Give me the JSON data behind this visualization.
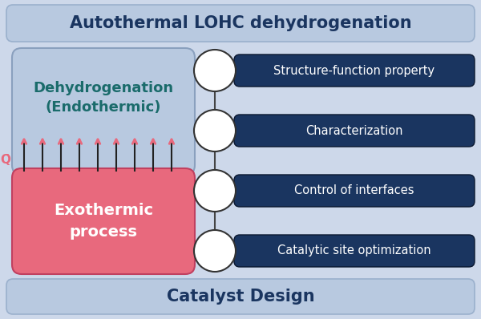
{
  "title": "Autothermal LOHC dehydrogenation",
  "bottom_label": "Catalyst Design",
  "left_box_top_text": "Dehydrogenation\n(Endothermic)",
  "left_box_bottom_text": "Exothermic\nprocess",
  "right_labels": [
    "Structure-function property",
    "Characterization",
    "Control of interfaces",
    "Catalytic site optimization"
  ],
  "bg_color": "#cdd8ea",
  "title_box_color": "#b8c9e0",
  "left_top_box_color": "#b8c9e0",
  "left_bottom_box_color": "#e8697d",
  "right_box_color": "#1a3560",
  "right_text_color": "#ffffff",
  "left_top_text_color": "#1a6b6b",
  "left_bottom_text_color": "#ffffff",
  "title_text_color": "#1a3560",
  "arrow_body_color": "#e8697d",
  "arrow_line_color": "#222222",
  "circle_color": "#ffffff",
  "circle_edge_color": "#333333",
  "q_label_color": "#e8697d",
  "connector_line_color": "#444444",
  "figsize": [
    6.0,
    3.98
  ],
  "dpi": 100
}
